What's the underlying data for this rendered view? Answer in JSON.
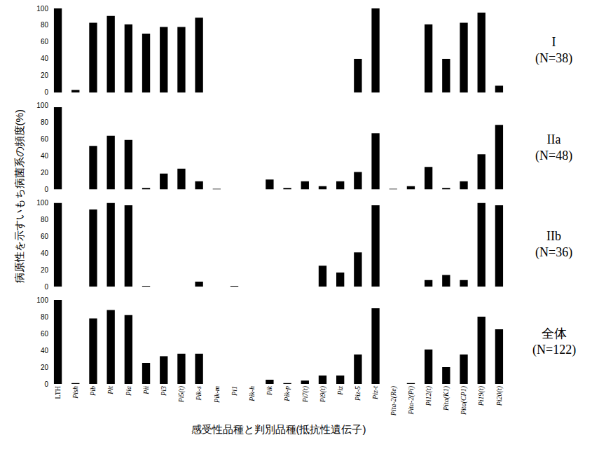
{
  "ylabel": "病原性を示すいもち病菌系の頻度(%)",
  "xlabel": "感受性品種と判別品種(抵抗性遺伝子)",
  "chart_data": [
    {
      "type": "bar",
      "title": "I",
      "subtitle": "(N=38)",
      "color": "#000000",
      "tick_labels": "y",
      "categories": [
        "LTH",
        "Pish",
        "Pib",
        "Pit",
        "Pia",
        "Pii",
        "Pi3",
        "Pi5(t)",
        "Pik-s",
        "Pik-m",
        "Pi1",
        "Pik-h",
        "Pik",
        "Pik-p",
        "Pi7(t)",
        "Pi9(t)",
        "Piz",
        "Piz-5",
        "Piz-t",
        "Pita-2(Re)",
        "Pita-2(Pi)",
        "Pi12(t)",
        "Pita(K1)",
        "Pita(CP1)",
        "Pi19(t)",
        "Pi20(t)"
      ],
      "values": [
        100,
        3,
        83,
        91,
        81,
        70,
        78,
        78,
        89,
        0,
        0,
        0,
        0,
        0,
        0,
        0,
        0,
        40,
        100,
        0,
        0,
        81,
        40,
        83,
        95,
        8
      ],
      "ylim": [
        0,
        100
      ],
      "yticks": [
        0,
        20,
        40,
        60,
        80,
        100
      ]
    },
    {
      "type": "bar",
      "title": "IIa",
      "subtitle": "(N=48)",
      "color": "#000000",
      "tick_labels": "y",
      "categories": [
        "LTH",
        "Pish",
        "Pib",
        "Pit",
        "Pia",
        "Pii",
        "Pi3",
        "Pi5(t)",
        "Pik-s",
        "Pik-m",
        "Pi1",
        "Pik-h",
        "Pik",
        "Pik-p",
        "Pi7(t)",
        "Pi9(t)",
        "Piz",
        "Piz-5",
        "Piz-t",
        "Pita-2(Re)",
        "Pita-2(Pi)",
        "Pi12(t)",
        "Pita(K1)",
        "Pita(CP1)",
        "Pi19(t)",
        "Pi20(t)"
      ],
      "values": [
        98,
        0,
        52,
        64,
        59,
        2,
        19,
        25,
        10,
        1,
        0,
        0,
        12,
        2,
        10,
        4,
        10,
        21,
        67,
        1,
        4,
        27,
        2,
        10,
        42,
        77
      ],
      "ylim": [
        0,
        100
      ],
      "yticks": [
        0,
        20,
        40,
        60,
        80,
        100
      ]
    },
    {
      "type": "bar",
      "title": "IIb",
      "subtitle": "(N=36)",
      "color": "#000000",
      "tick_labels": "y",
      "categories": [
        "LTH",
        "Pish",
        "Pib",
        "Pit",
        "Pia",
        "Pii",
        "Pi3",
        "Pi5(t)",
        "Pik-s",
        "Pik-m",
        "Pi1",
        "Pik-h",
        "Pik",
        "Pik-p",
        "Pi7(t)",
        "Pi9(t)",
        "Piz",
        "Piz-5",
        "Piz-t",
        "Pita-2(Re)",
        "Pita-2(Pi)",
        "Pi12(t)",
        "Pita(K1)",
        "Pita(CP1)",
        "Pi19(t)",
        "Pi20(t)"
      ],
      "values": [
        100,
        0,
        92,
        100,
        97,
        1,
        0,
        0,
        6,
        0,
        1,
        0,
        0,
        0,
        0,
        25,
        17,
        41,
        97,
        0,
        0,
        8,
        14,
        8,
        100,
        97
      ],
      "ylim": [
        0,
        100
      ],
      "yticks": [
        0,
        20,
        40,
        60,
        80,
        100
      ]
    },
    {
      "type": "bar",
      "title": "全体",
      "subtitle": "(N=122)",
      "color": "#000000",
      "categories": [
        "LTH",
        "Pish",
        "Pib",
        "Pit",
        "Pia",
        "Pii",
        "Pi3",
        "Pi5(t)",
        "Pik-s",
        "Pik-m",
        "Pi1",
        "Pik-h",
        "Pik",
        "Pik-p",
        "Pi7(t)",
        "Pi9(t)",
        "Piz",
        "Piz-5",
        "Piz-t",
        "Pita-2(Re)",
        "Pita-2(Pi)",
        "Pi12(t)",
        "Pita(K1)",
        "Pita(CP1)",
        "Pi19(t)",
        "Pi20(t)"
      ],
      "values": [
        100,
        1,
        78,
        88,
        82,
        25,
        33,
        36,
        36,
        0,
        0,
        0,
        5,
        1,
        4,
        10,
        10,
        35,
        90,
        0,
        1,
        41,
        20,
        35,
        80,
        65
      ],
      "ylim": [
        0,
        100
      ],
      "yticks": [
        0,
        20,
        40,
        60,
        80,
        100
      ]
    }
  ]
}
